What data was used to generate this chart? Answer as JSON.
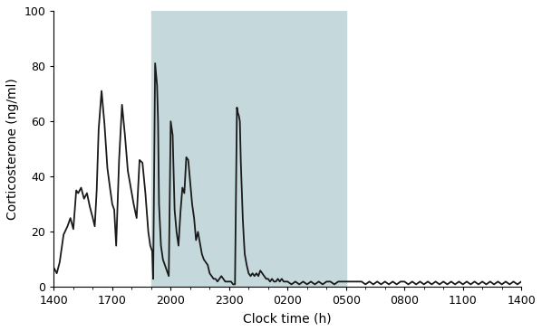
{
  "title": "",
  "xlabel": "Clock time (h)",
  "ylabel": "Corticosterone (ng/ml)",
  "xlim": [
    0,
    24
  ],
  "ylim": [
    0,
    100
  ],
  "xtick_positions": [
    0,
    3,
    6,
    9,
    12,
    15,
    18,
    21,
    24
  ],
  "xtick_labels": [
    "1400",
    "1700",
    "2000",
    "2300",
    "0200",
    "0500",
    "0800",
    "1100",
    "1400"
  ],
  "ytick_positions": [
    0,
    20,
    40,
    60,
    80,
    100
  ],
  "ytick_labels": [
    "0",
    "20",
    "40",
    "60",
    "80",
    "100"
  ],
  "shade_start": 5,
  "shade_end": 15,
  "shade_color": "#c5d8dc",
  "line_color": "#1a1a1a",
  "line_width": 1.3,
  "bg_color": "#ffffff",
  "x": [
    0.0,
    0.15,
    0.3,
    0.5,
    0.7,
    0.85,
    1.0,
    1.15,
    1.25,
    1.4,
    1.55,
    1.7,
    1.85,
    2.0,
    2.1,
    2.2,
    2.3,
    2.45,
    2.6,
    2.75,
    2.9,
    3.0,
    3.1,
    3.2,
    3.35,
    3.5,
    3.65,
    3.8,
    3.95,
    4.1,
    4.25,
    4.4,
    4.55,
    4.7,
    4.85,
    4.95,
    5.0,
    5.05,
    5.1,
    5.2,
    5.3,
    5.35,
    5.4,
    5.5,
    5.6,
    5.7,
    5.8,
    5.9,
    6.0,
    6.1,
    6.2,
    6.3,
    6.4,
    6.5,
    6.6,
    6.7,
    6.8,
    6.9,
    7.0,
    7.1,
    7.2,
    7.3,
    7.4,
    7.5,
    7.6,
    7.7,
    7.8,
    7.9,
    8.0,
    8.1,
    8.2,
    8.3,
    8.4,
    8.5,
    8.6,
    8.7,
    8.8,
    8.9,
    9.0,
    9.1,
    9.2,
    9.3,
    9.4,
    9.45,
    9.5,
    9.55,
    9.6,
    9.65,
    9.7,
    9.75,
    9.8,
    9.9,
    10.0,
    10.1,
    10.2,
    10.3,
    10.4,
    10.5,
    10.6,
    10.7,
    10.8,
    10.9,
    11.0,
    11.1,
    11.2,
    11.3,
    11.4,
    11.5,
    11.6,
    11.7,
    11.8,
    11.9,
    12.0,
    12.2,
    12.4,
    12.6,
    12.8,
    13.0,
    13.2,
    13.4,
    13.6,
    13.8,
    14.0,
    14.2,
    14.4,
    14.6,
    14.8,
    15.0,
    15.2,
    15.4,
    15.6,
    15.8,
    16.0,
    16.2,
    16.4,
    16.6,
    16.8,
    17.0,
    17.2,
    17.4,
    17.6,
    17.8,
    18.0,
    18.2,
    18.4,
    18.6,
    18.8,
    19.0,
    19.2,
    19.4,
    19.6,
    19.8,
    20.0,
    20.2,
    20.4,
    20.6,
    20.8,
    21.0,
    21.2,
    21.4,
    21.6,
    21.8,
    22.0,
    22.2,
    22.4,
    22.6,
    22.8,
    23.0,
    23.2,
    23.4,
    23.6,
    23.8,
    24.0
  ],
  "y": [
    7,
    5,
    9,
    19,
    22,
    25,
    21,
    35,
    34,
    36,
    32,
    34,
    29,
    25,
    22,
    35,
    57,
    71,
    59,
    43,
    35,
    30,
    28,
    15,
    46,
    66,
    55,
    42,
    36,
    30,
    25,
    46,
    45,
    34,
    20,
    15,
    14,
    13,
    3,
    81,
    73,
    60,
    30,
    15,
    10,
    8,
    6,
    4,
    60,
    55,
    28,
    20,
    15,
    27,
    36,
    34,
    47,
    46,
    38,
    30,
    25,
    17,
    20,
    16,
    12,
    10,
    9,
    8,
    5,
    4,
    3,
    3,
    2,
    3,
    4,
    3,
    2,
    2,
    2,
    2,
    1,
    1,
    65,
    63,
    62,
    60,
    45,
    35,
    25,
    18,
    12,
    8,
    5,
    4,
    5,
    4,
    5,
    4,
    6,
    5,
    4,
    3,
    3,
    2,
    3,
    2,
    2,
    3,
    2,
    3,
    2,
    2,
    2,
    1,
    2,
    1,
    2,
    1,
    2,
    1,
    2,
    1,
    2,
    2,
    1,
    2,
    2,
    2,
    2,
    2,
    2,
    2,
    1,
    2,
    1,
    2,
    1,
    2,
    1,
    2,
    1,
    2,
    2,
    1,
    2,
    1,
    2,
    1,
    2,
    1,
    2,
    1,
    2,
    1,
    2,
    1,
    2,
    1,
    2,
    1,
    2,
    1,
    2,
    1,
    2,
    1,
    2,
    1,
    2,
    1,
    2,
    1,
    2
  ]
}
